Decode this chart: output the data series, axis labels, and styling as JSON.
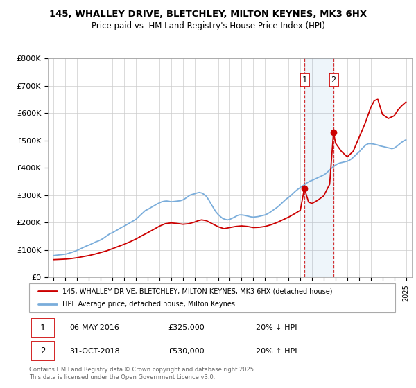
{
  "title_line1": "145, WHALLEY DRIVE, BLETCHLEY, MILTON KEYNES, MK3 6HX",
  "title_line2": "Price paid vs. HM Land Registry's House Price Index (HPI)",
  "legend_label_red": "145, WHALLEY DRIVE, BLETCHLEY, MILTON KEYNES, MK3 6HX (detached house)",
  "legend_label_blue": "HPI: Average price, detached house, Milton Keynes",
  "annotation1_date": "06-MAY-2016",
  "annotation1_price": "£325,000",
  "annotation1_hpi": "20% ↓ HPI",
  "annotation2_date": "31-OCT-2018",
  "annotation2_price": "£530,000",
  "annotation2_hpi": "20% ↑ HPI",
  "footer": "Contains HM Land Registry data © Crown copyright and database right 2025.\nThis data is licensed under the Open Government Licence v3.0.",
  "red_color": "#cc0000",
  "blue_color": "#7aaddb",
  "vline_color": "#cc0000",
  "background_color": "#ffffff",
  "grid_color": "#cccccc",
  "ylim": [
    0,
    800000
  ],
  "yticks": [
    0,
    100000,
    200000,
    300000,
    400000,
    500000,
    600000,
    700000,
    800000
  ],
  "ytick_labels": [
    "£0",
    "£100K",
    "£200K",
    "£300K",
    "£400K",
    "£500K",
    "£600K",
    "£700K",
    "£800K"
  ],
  "sale1_year": 2016.35,
  "sale1_price": 325000,
  "sale2_year": 2018.83,
  "sale2_price": 530000,
  "hpi_x": [
    1995.0,
    1995.1,
    1995.2,
    1995.3,
    1995.4,
    1995.5,
    1995.6,
    1995.7,
    1995.8,
    1995.9,
    1996.0,
    1996.1,
    1996.2,
    1996.3,
    1996.4,
    1996.5,
    1996.6,
    1996.7,
    1996.8,
    1996.9,
    1997.0,
    1997.2,
    1997.4,
    1997.6,
    1997.8,
    1998.0,
    1998.2,
    1998.4,
    1998.6,
    1998.8,
    1999.0,
    1999.2,
    1999.4,
    1999.6,
    1999.8,
    2000.0,
    2000.2,
    2000.4,
    2000.6,
    2000.8,
    2001.0,
    2001.2,
    2001.4,
    2001.6,
    2001.8,
    2002.0,
    2002.2,
    2002.4,
    2002.6,
    2002.8,
    2003.0,
    2003.2,
    2003.4,
    2003.6,
    2003.8,
    2004.0,
    2004.2,
    2004.4,
    2004.6,
    2004.8,
    2005.0,
    2005.2,
    2005.4,
    2005.6,
    2005.8,
    2006.0,
    2006.2,
    2006.4,
    2006.6,
    2006.8,
    2007.0,
    2007.2,
    2007.4,
    2007.6,
    2007.8,
    2008.0,
    2008.2,
    2008.4,
    2008.6,
    2008.8,
    2009.0,
    2009.2,
    2009.4,
    2009.6,
    2009.8,
    2010.0,
    2010.2,
    2010.4,
    2010.6,
    2010.8,
    2011.0,
    2011.2,
    2011.4,
    2011.6,
    2011.8,
    2012.0,
    2012.2,
    2012.4,
    2012.6,
    2012.8,
    2013.0,
    2013.2,
    2013.4,
    2013.6,
    2013.8,
    2014.0,
    2014.2,
    2014.4,
    2014.6,
    2014.8,
    2015.0,
    2015.2,
    2015.4,
    2015.6,
    2015.8,
    2016.0,
    2016.2,
    2016.4,
    2016.6,
    2016.8,
    2017.0,
    2017.2,
    2017.4,
    2017.6,
    2017.8,
    2018.0,
    2018.2,
    2018.4,
    2018.6,
    2018.8,
    2019.0,
    2019.2,
    2019.4,
    2019.6,
    2019.8,
    2020.0,
    2020.2,
    2020.4,
    2020.6,
    2020.8,
    2021.0,
    2021.2,
    2021.4,
    2021.6,
    2021.8,
    2022.0,
    2022.2,
    2022.4,
    2022.6,
    2022.8,
    2023.0,
    2023.2,
    2023.4,
    2023.6,
    2023.8,
    2024.0,
    2024.2,
    2024.4,
    2024.6,
    2024.8,
    2025.0
  ],
  "hpi_y": [
    80000,
    80500,
    81000,
    81500,
    82000,
    82500,
    83000,
    83500,
    84000,
    84500,
    85000,
    86000,
    87000,
    88500,
    90000,
    91000,
    92500,
    94000,
    95500,
    97000,
    99000,
    103000,
    107000,
    111000,
    115000,
    118000,
    122000,
    126000,
    130000,
    133000,
    137000,
    142000,
    148000,
    154000,
    160000,
    163000,
    168000,
    173000,
    178000,
    183000,
    187000,
    192000,
    197000,
    202000,
    207000,
    212000,
    220000,
    228000,
    236000,
    244000,
    248000,
    253000,
    258000,
    263000,
    268000,
    272000,
    276000,
    278000,
    279000,
    278000,
    276000,
    277000,
    278000,
    279000,
    280000,
    283000,
    288000,
    294000,
    300000,
    303000,
    305000,
    308000,
    310000,
    308000,
    303000,
    296000,
    283000,
    268000,
    254000,
    240000,
    230000,
    222000,
    215000,
    212000,
    210000,
    212000,
    216000,
    220000,
    225000,
    228000,
    228000,
    227000,
    225000,
    223000,
    221000,
    220000,
    221000,
    222000,
    224000,
    226000,
    228000,
    232000,
    237000,
    243000,
    249000,
    255000,
    262000,
    270000,
    278000,
    286000,
    292000,
    299000,
    307000,
    315000,
    322000,
    328000,
    334000,
    340000,
    346000,
    351000,
    354000,
    358000,
    362000,
    366000,
    370000,
    374000,
    380000,
    388000,
    396000,
    404000,
    410000,
    415000,
    418000,
    420000,
    422000,
    424000,
    428000,
    434000,
    442000,
    450000,
    458000,
    467000,
    476000,
    484000,
    488000,
    488000,
    487000,
    485000,
    483000,
    480000,
    478000,
    476000,
    474000,
    472000,
    470000,
    472000,
    478000,
    485000,
    492000,
    498000,
    502000
  ],
  "price_x": [
    1995.0,
    1995.5,
    1996.0,
    1996.5,
    1997.0,
    1997.5,
    1998.0,
    1998.5,
    1999.0,
    1999.5,
    2000.0,
    2000.5,
    2001.0,
    2001.5,
    2002.0,
    2002.5,
    2003.0,
    2003.5,
    2004.0,
    2004.5,
    2005.0,
    2005.5,
    2006.0,
    2006.5,
    2007.0,
    2007.3,
    2007.6,
    2008.0,
    2008.5,
    2009.0,
    2009.5,
    2010.0,
    2010.5,
    2011.0,
    2011.5,
    2012.0,
    2012.5,
    2013.0,
    2013.5,
    2014.0,
    2014.5,
    2015.0,
    2015.5,
    2016.0,
    2016.35,
    2016.7,
    2017.0,
    2017.5,
    2018.0,
    2018.5,
    2018.83,
    2019.0,
    2019.5,
    2020.0,
    2020.5,
    2021.0,
    2021.5,
    2022.0,
    2022.3,
    2022.6,
    2023.0,
    2023.5,
    2024.0,
    2024.3,
    2024.6,
    2025.0
  ],
  "price_y": [
    65000,
    66000,
    67000,
    69000,
    72000,
    76000,
    80000,
    85000,
    91000,
    97000,
    105000,
    113000,
    121000,
    130000,
    140000,
    152000,
    163000,
    175000,
    187000,
    196000,
    199000,
    197000,
    194000,
    196000,
    202000,
    207000,
    210000,
    207000,
    196000,
    185000,
    178000,
    182000,
    186000,
    188000,
    186000,
    182000,
    183000,
    186000,
    192000,
    200000,
    210000,
    220000,
    232000,
    245000,
    325000,
    275000,
    270000,
    282000,
    298000,
    340000,
    530000,
    490000,
    460000,
    440000,
    460000,
    510000,
    560000,
    620000,
    645000,
    650000,
    595000,
    580000,
    590000,
    610000,
    625000,
    640000
  ]
}
